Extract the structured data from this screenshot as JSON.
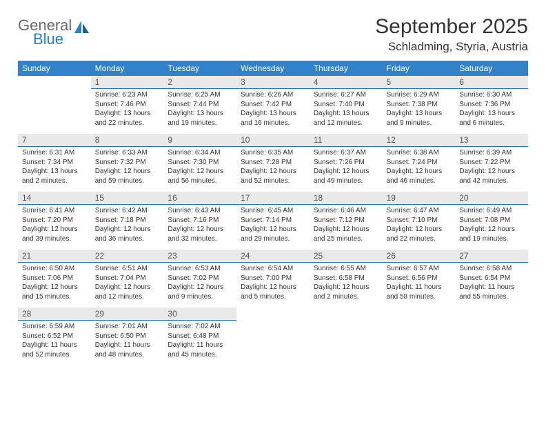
{
  "logo": {
    "word1": "General",
    "word2": "Blue"
  },
  "title": "September 2025",
  "location": "Schladming, Styria, Austria",
  "colors": {
    "header_bg": "#3282c9",
    "header_text": "#ffffff",
    "daynum_bg": "#e9e9e9",
    "daynum_border": "#2f6fa8",
    "body_text": "#333333",
    "logo_gray": "#6b6b6b",
    "logo_blue": "#2a7fc9"
  },
  "typography": {
    "title_fontsize": 30,
    "location_fontsize": 17,
    "weekday_fontsize": 12,
    "daynum_fontsize": 12,
    "body_fontsize": 10
  },
  "weekdays": [
    "Sunday",
    "Monday",
    "Tuesday",
    "Wednesday",
    "Thursday",
    "Friday",
    "Saturday"
  ],
  "weeks": [
    [
      {
        "n": "",
        "sunrise": "",
        "sunset": "",
        "daylight": ""
      },
      {
        "n": "1",
        "sunrise": "Sunrise: 6:23 AM",
        "sunset": "Sunset: 7:46 PM",
        "daylight": "Daylight: 13 hours and 22 minutes."
      },
      {
        "n": "2",
        "sunrise": "Sunrise: 6:25 AM",
        "sunset": "Sunset: 7:44 PM",
        "daylight": "Daylight: 13 hours and 19 minutes."
      },
      {
        "n": "3",
        "sunrise": "Sunrise: 6:26 AM",
        "sunset": "Sunset: 7:42 PM",
        "daylight": "Daylight: 13 hours and 16 minutes."
      },
      {
        "n": "4",
        "sunrise": "Sunrise: 6:27 AM",
        "sunset": "Sunset: 7:40 PM",
        "daylight": "Daylight: 13 hours and 12 minutes."
      },
      {
        "n": "5",
        "sunrise": "Sunrise: 6:29 AM",
        "sunset": "Sunset: 7:38 PM",
        "daylight": "Daylight: 13 hours and 9 minutes."
      },
      {
        "n": "6",
        "sunrise": "Sunrise: 6:30 AM",
        "sunset": "Sunset: 7:36 PM",
        "daylight": "Daylight: 13 hours and 6 minutes."
      }
    ],
    [
      {
        "n": "7",
        "sunrise": "Sunrise: 6:31 AM",
        "sunset": "Sunset: 7:34 PM",
        "daylight": "Daylight: 13 hours and 2 minutes."
      },
      {
        "n": "8",
        "sunrise": "Sunrise: 6:33 AM",
        "sunset": "Sunset: 7:32 PM",
        "daylight": "Daylight: 12 hours and 59 minutes."
      },
      {
        "n": "9",
        "sunrise": "Sunrise: 6:34 AM",
        "sunset": "Sunset: 7:30 PM",
        "daylight": "Daylight: 12 hours and 56 minutes."
      },
      {
        "n": "10",
        "sunrise": "Sunrise: 6:35 AM",
        "sunset": "Sunset: 7:28 PM",
        "daylight": "Daylight: 12 hours and 52 minutes."
      },
      {
        "n": "11",
        "sunrise": "Sunrise: 6:37 AM",
        "sunset": "Sunset: 7:26 PM",
        "daylight": "Daylight: 12 hours and 49 minutes."
      },
      {
        "n": "12",
        "sunrise": "Sunrise: 6:38 AM",
        "sunset": "Sunset: 7:24 PM",
        "daylight": "Daylight: 12 hours and 46 minutes."
      },
      {
        "n": "13",
        "sunrise": "Sunrise: 6:39 AM",
        "sunset": "Sunset: 7:22 PM",
        "daylight": "Daylight: 12 hours and 42 minutes."
      }
    ],
    [
      {
        "n": "14",
        "sunrise": "Sunrise: 6:41 AM",
        "sunset": "Sunset: 7:20 PM",
        "daylight": "Daylight: 12 hours and 39 minutes."
      },
      {
        "n": "15",
        "sunrise": "Sunrise: 6:42 AM",
        "sunset": "Sunset: 7:18 PM",
        "daylight": "Daylight: 12 hours and 36 minutes."
      },
      {
        "n": "16",
        "sunrise": "Sunrise: 6:43 AM",
        "sunset": "Sunset: 7:16 PM",
        "daylight": "Daylight: 12 hours and 32 minutes."
      },
      {
        "n": "17",
        "sunrise": "Sunrise: 6:45 AM",
        "sunset": "Sunset: 7:14 PM",
        "daylight": "Daylight: 12 hours and 29 minutes."
      },
      {
        "n": "18",
        "sunrise": "Sunrise: 6:46 AM",
        "sunset": "Sunset: 7:12 PM",
        "daylight": "Daylight: 12 hours and 25 minutes."
      },
      {
        "n": "19",
        "sunrise": "Sunrise: 6:47 AM",
        "sunset": "Sunset: 7:10 PM",
        "daylight": "Daylight: 12 hours and 22 minutes."
      },
      {
        "n": "20",
        "sunrise": "Sunrise: 6:49 AM",
        "sunset": "Sunset: 7:08 PM",
        "daylight": "Daylight: 12 hours and 19 minutes."
      }
    ],
    [
      {
        "n": "21",
        "sunrise": "Sunrise: 6:50 AM",
        "sunset": "Sunset: 7:06 PM",
        "daylight": "Daylight: 12 hours and 15 minutes."
      },
      {
        "n": "22",
        "sunrise": "Sunrise: 6:51 AM",
        "sunset": "Sunset: 7:04 PM",
        "daylight": "Daylight: 12 hours and 12 minutes."
      },
      {
        "n": "23",
        "sunrise": "Sunrise: 6:53 AM",
        "sunset": "Sunset: 7:02 PM",
        "daylight": "Daylight: 12 hours and 9 minutes."
      },
      {
        "n": "24",
        "sunrise": "Sunrise: 6:54 AM",
        "sunset": "Sunset: 7:00 PM",
        "daylight": "Daylight: 12 hours and 5 minutes."
      },
      {
        "n": "25",
        "sunrise": "Sunrise: 6:55 AM",
        "sunset": "Sunset: 6:58 PM",
        "daylight": "Daylight: 12 hours and 2 minutes."
      },
      {
        "n": "26",
        "sunrise": "Sunrise: 6:57 AM",
        "sunset": "Sunset: 6:56 PM",
        "daylight": "Daylight: 11 hours and 58 minutes."
      },
      {
        "n": "27",
        "sunrise": "Sunrise: 6:58 AM",
        "sunset": "Sunset: 6:54 PM",
        "daylight": "Daylight: 11 hours and 55 minutes."
      }
    ],
    [
      {
        "n": "28",
        "sunrise": "Sunrise: 6:59 AM",
        "sunset": "Sunset: 6:52 PM",
        "daylight": "Daylight: 11 hours and 52 minutes."
      },
      {
        "n": "29",
        "sunrise": "Sunrise: 7:01 AM",
        "sunset": "Sunset: 6:50 PM",
        "daylight": "Daylight: 11 hours and 48 minutes."
      },
      {
        "n": "30",
        "sunrise": "Sunrise: 7:02 AM",
        "sunset": "Sunset: 6:48 PM",
        "daylight": "Daylight: 11 hours and 45 minutes."
      },
      {
        "n": "",
        "sunrise": "",
        "sunset": "",
        "daylight": ""
      },
      {
        "n": "",
        "sunrise": "",
        "sunset": "",
        "daylight": ""
      },
      {
        "n": "",
        "sunrise": "",
        "sunset": "",
        "daylight": ""
      },
      {
        "n": "",
        "sunrise": "",
        "sunset": "",
        "daylight": ""
      }
    ]
  ]
}
